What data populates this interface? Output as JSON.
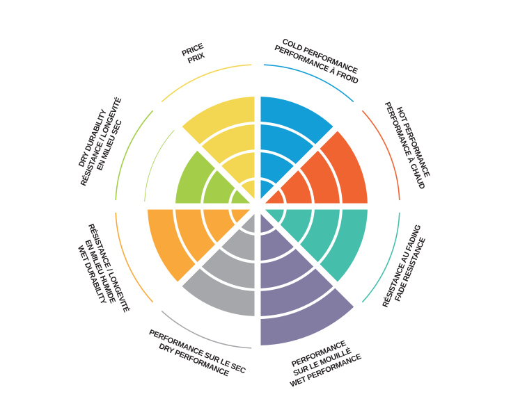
{
  "diagram": {
    "max_level": 5,
    "segments": [
      {
        "id": "cold",
        "lines": [
          "COLD PERFORMANCE",
          "PERFORMANCE À FROID"
        ],
        "level": 4,
        "color": "#139ed8",
        "outer_arcs": 1
      },
      {
        "id": "hot",
        "lines": [
          "HOT PERFORMANCE",
          "PERFORMANCE À CHAUD"
        ],
        "level": 4,
        "color": "#f06432",
        "outer_arcs": 1
      },
      {
        "id": "fade",
        "lines": [
          "RÉSISTANCE AU FADING",
          "FADE RESISTANCE"
        ],
        "level": 4,
        "color": "#45bfab",
        "outer_arcs": 1
      },
      {
        "id": "wet",
        "lines": [
          "PERFORMANCE",
          "SUR LE MOUILLÉ",
          "WET PERFORMANCE"
        ],
        "level": 5,
        "color": "#827ba2",
        "outer_arcs": 0
      },
      {
        "id": "dry",
        "lines": [
          "PERFORMANCE SUR LE SEC",
          "DRY PERFORMANCE"
        ],
        "level": 4,
        "color": "#a6a7aa",
        "outer_arcs": 1
      },
      {
        "id": "wet-durability",
        "lines": [
          "RÉSISTANCE / LONGEVITÉ",
          "EN MILIEU HUMIDE",
          "WET DURABILITY"
        ],
        "level": 4,
        "color": "#f9a93c",
        "outer_arcs": 1
      },
      {
        "id": "dry-durability",
        "lines": [
          "DRY DURABILITY",
          "RÉSISTANCE / LONGEVITÉ",
          "EN MILIEU SEC"
        ],
        "level": 3,
        "color": "#a4cd4a",
        "outer_arcs": 2
      },
      {
        "id": "price",
        "lines": [
          "PRICE",
          "PRIX"
        ],
        "level": 4,
        "color": "#f3d752",
        "outer_arcs": 1
      }
    ]
  }
}
